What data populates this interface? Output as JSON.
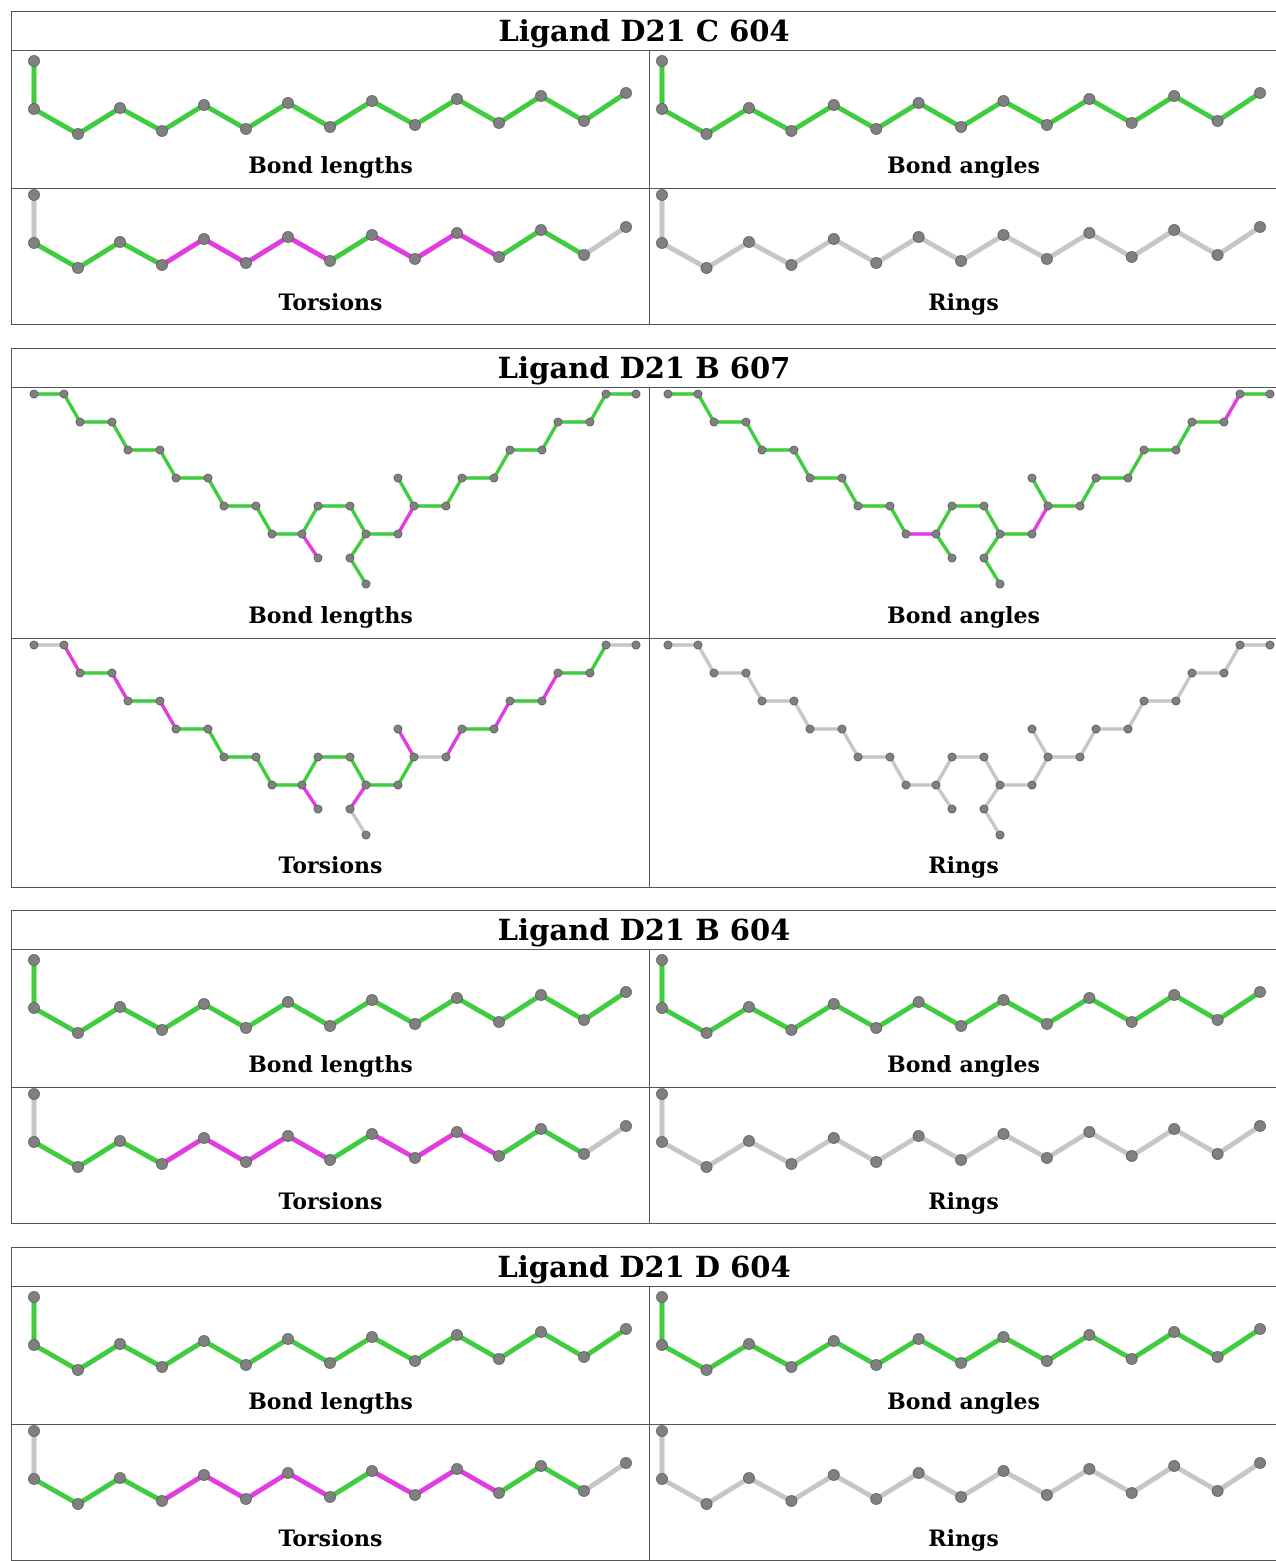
{
  "colors": {
    "ok": "#3fcc3f",
    "outlier": "#e03ce0",
    "neutral": "#c6c6c6",
    "atom": "#808080"
  },
  "ligands": [
    {
      "title": "Ligand D21 C 604",
      "molecule": "zigzag",
      "panels": [
        {
          "label": "Bond lengths",
          "coloring": "bl"
        },
        {
          "label": "Bond angles",
          "coloring": "ba"
        },
        {
          "label": "Torsions",
          "coloring": "tor"
        },
        {
          "label": "Rings",
          "coloring": "ring"
        }
      ]
    },
    {
      "title": "Ligand D21 B 607",
      "molecule": "vshape",
      "panels": [
        {
          "label": "Bond lengths",
          "coloring": "bl"
        },
        {
          "label": "Bond angles",
          "coloring": "ba"
        },
        {
          "label": "Torsions",
          "coloring": "tor"
        },
        {
          "label": "Rings",
          "coloring": "ring"
        }
      ]
    },
    {
      "title": "Ligand D21 B 604",
      "molecule": "zigzag",
      "panels": [
        {
          "label": "Bond lengths",
          "coloring": "bl"
        },
        {
          "label": "Bond angles",
          "coloring": "ba"
        },
        {
          "label": "Torsions",
          "coloring": "tor"
        },
        {
          "label": "Rings",
          "coloring": "ring"
        }
      ]
    },
    {
      "title": "Ligand D21 D 604",
      "molecule": "zigzag",
      "panels": [
        {
          "label": "Bond lengths",
          "coloring": "bl"
        },
        {
          "label": "Bond angles",
          "coloring": "ba"
        },
        {
          "label": "Torsions",
          "coloring": "tor"
        },
        {
          "label": "Rings",
          "coloring": "ring"
        }
      ]
    }
  ]
}
